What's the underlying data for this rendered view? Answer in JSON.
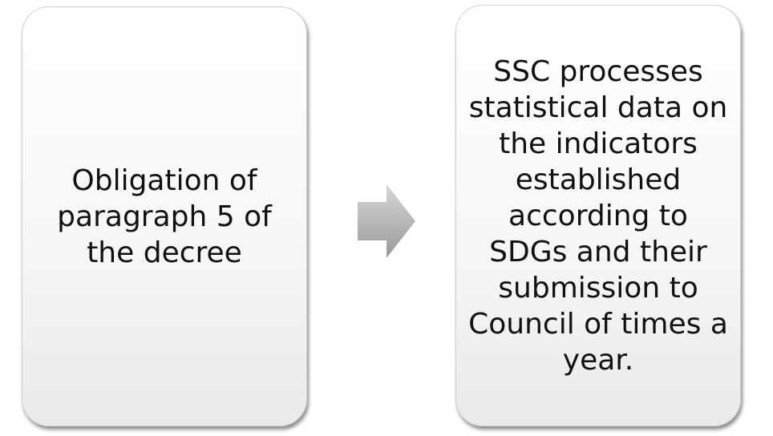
{
  "nodes": [
    {
      "label": "Obligation of paragraph 5 of the decree"
    },
    {
      "label": "SSC processes statistical data on the indicators established according to SDGs and their submission to Council of times a year."
    }
  ]
}
